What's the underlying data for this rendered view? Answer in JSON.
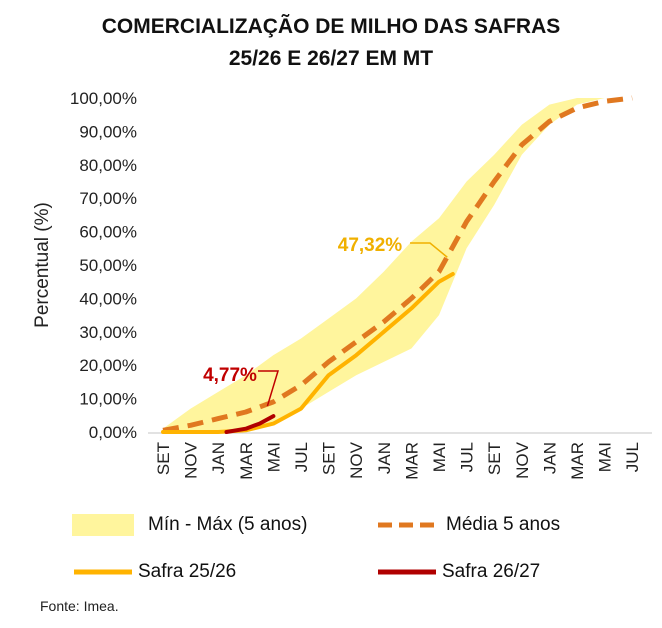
{
  "chart_data": {
    "type": "line",
    "title_line1": "COMERCIALIZAÇÃO DE MILHO DAS SAFRAS",
    "title_line2": "25/26 E  26/27 EM MT",
    "ylabel": "Percentual (%)",
    "xlabel": "",
    "ylim": [
      0,
      100
    ],
    "yticks": [
      0,
      10,
      20,
      30,
      40,
      50,
      60,
      70,
      80,
      90,
      100
    ],
    "ytick_labels": [
      "0,00%",
      "10,00%",
      "20,00%",
      "30,00%",
      "40,00%",
      "50,00%",
      "60,00%",
      "70,00%",
      "80,00%",
      "90,00%",
      "100,00%"
    ],
    "categories": [
      "SET",
      "NOV",
      "JAN",
      "MAR",
      "MAI",
      "JUL",
      "SET",
      "NOV",
      "JAN",
      "MAR",
      "MAI",
      "JUL",
      "SET",
      "NOV",
      "JAN",
      "MAR",
      "MAI",
      "JUL"
    ],
    "grid": false,
    "legend_position": "bottom",
    "band": {
      "name": "Mín - Máx (5 anos)",
      "color": "#FFF59D",
      "x": [
        0,
        1,
        2,
        3,
        4,
        5,
        6,
        7,
        8,
        9,
        10,
        11,
        12,
        13,
        14,
        15,
        16
      ],
      "low": [
        0,
        0,
        0,
        1,
        3,
        7,
        12,
        17,
        21,
        25,
        35,
        55,
        68,
        83,
        92,
        98,
        100
      ],
      "high": [
        1,
        7,
        12,
        17,
        23,
        28,
        34,
        40,
        48,
        57,
        64,
        75,
        83,
        92,
        98,
        100,
        100
      ]
    },
    "series": [
      {
        "name": "Média 5 anos",
        "style": "dashed",
        "color": "#E07820",
        "x": [
          0,
          1,
          2,
          3,
          4,
          5,
          6,
          7,
          8,
          9,
          10,
          11,
          12,
          13,
          14,
          15,
          16,
          17
        ],
        "values": [
          0.5,
          2,
          4,
          6,
          9,
          14,
          21,
          27,
          33,
          40,
          48,
          63,
          75,
          86,
          93,
          97,
          99,
          100
        ]
      },
      {
        "name": "Safra 25/26",
        "style": "solid",
        "color": "#FFB300",
        "x": [
          0,
          1,
          2,
          3,
          4,
          5,
          6,
          7,
          8,
          9,
          10,
          10.5
        ],
        "values": [
          0,
          0,
          0,
          0.5,
          2.5,
          7,
          17,
          23,
          30,
          37,
          45,
          47.32
        ]
      },
      {
        "name": "Safra 26/27",
        "style": "solid",
        "color": "#B00000",
        "x": [
          2.3,
          3,
          3.5,
          4
        ],
        "values": [
          0,
          1,
          2.5,
          4.77
        ]
      }
    ],
    "annotations": [
      {
        "text": "47,32%",
        "color": "#F0B000",
        "x": 10.5,
        "y": 47.32
      },
      {
        "text": "4,77%",
        "color": "#C00000",
        "x": 4,
        "y": 4.77
      }
    ],
    "source": "Fonte: Imea."
  }
}
